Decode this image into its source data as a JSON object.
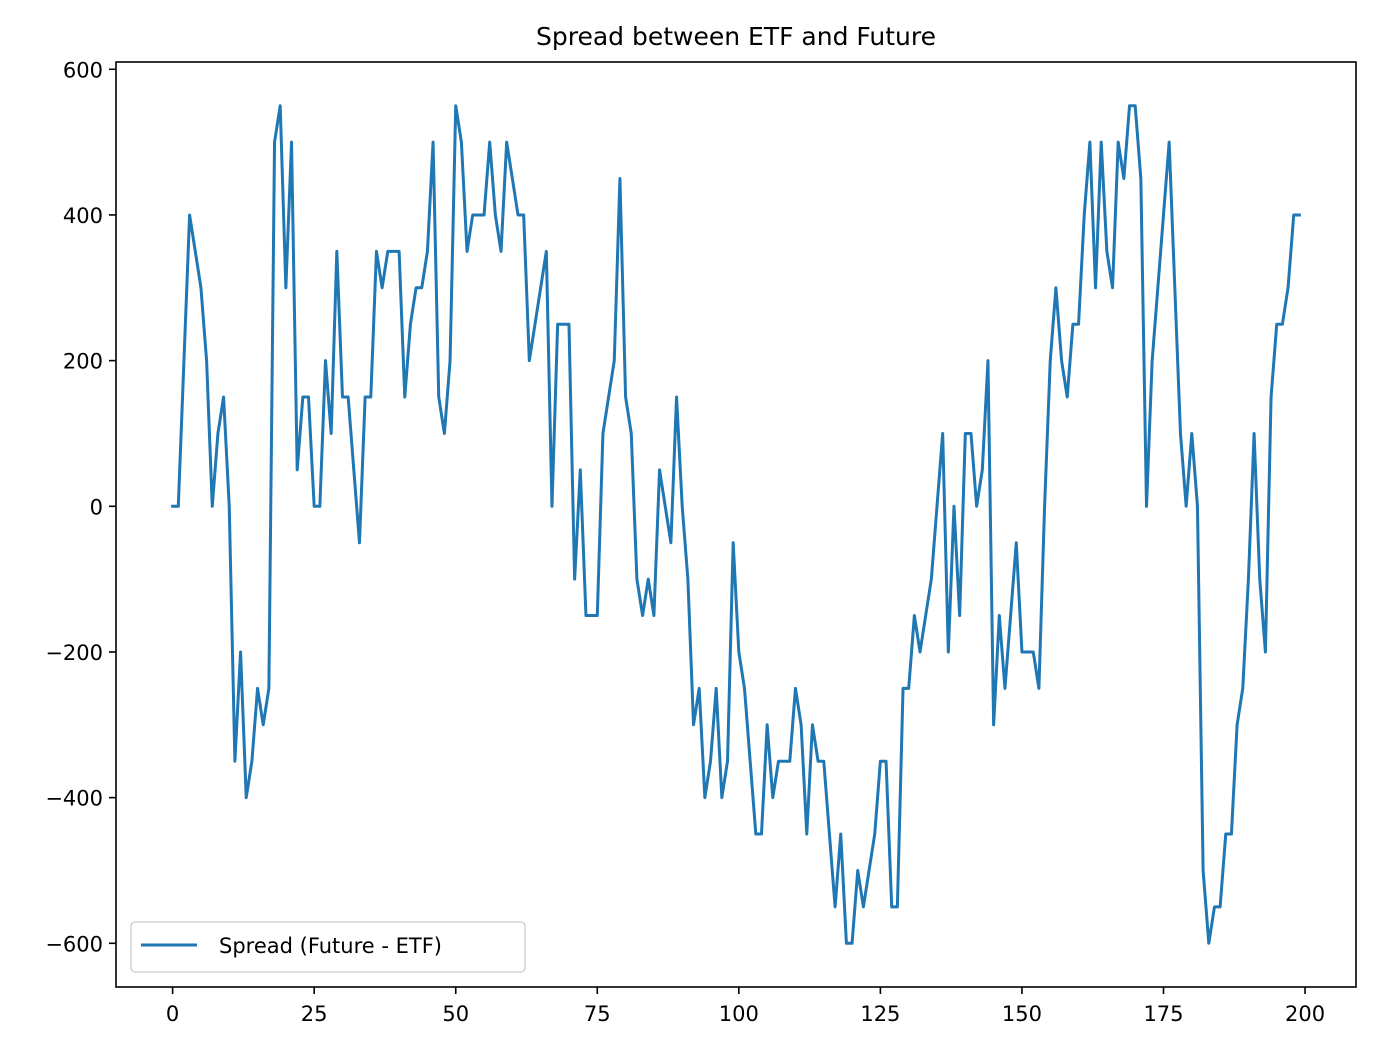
{
  "chart_data": {
    "type": "line",
    "title": "Spread between ETF and Future",
    "xlabel": "",
    "ylabel": "",
    "xlim": [
      -10,
      209
    ],
    "ylim": [
      -660,
      610
    ],
    "xticks": [
      0,
      25,
      50,
      75,
      100,
      125,
      150,
      175,
      200
    ],
    "xtick_labels": [
      "0",
      "25",
      "50",
      "75",
      "100",
      "125",
      "150",
      "175",
      "200"
    ],
    "yticks": [
      600,
      400,
      200,
      0,
      -200,
      -400,
      -600
    ],
    "ytick_labels": [
      "600",
      "400",
      "200",
      "0",
      "−200",
      "−400",
      "−600"
    ],
    "grid": false,
    "legend_position": "lower-left",
    "colors": {
      "series": "#1f77b4"
    },
    "series": [
      {
        "name": "Spread (Future - ETF)",
        "x": [
          0,
          1,
          2,
          3,
          4,
          5,
          6,
          7,
          8,
          9,
          10,
          11,
          12,
          13,
          14,
          15,
          16,
          17,
          18,
          19,
          20,
          21,
          22,
          23,
          24,
          25,
          26,
          27,
          28,
          29,
          30,
          31,
          32,
          33,
          34,
          35,
          36,
          37,
          38,
          39,
          40,
          41,
          42,
          43,
          44,
          45,
          46,
          47,
          48,
          49,
          50,
          51,
          52,
          53,
          54,
          55,
          56,
          57,
          58,
          59,
          60,
          61,
          62,
          63,
          64,
          65,
          66,
          67,
          68,
          69,
          70,
          71,
          72,
          73,
          74,
          75,
          76,
          77,
          78,
          79,
          80,
          81,
          82,
          83,
          84,
          85,
          86,
          87,
          88,
          89,
          90,
          91,
          92,
          93,
          94,
          95,
          96,
          97,
          98,
          99,
          100,
          101,
          102,
          103,
          104,
          105,
          106,
          107,
          108,
          109,
          110,
          111,
          112,
          113,
          114,
          115,
          116,
          117,
          118,
          119,
          120,
          121,
          122,
          123,
          124,
          125,
          126,
          127,
          128,
          129,
          130,
          131,
          132,
          133,
          134,
          135,
          136,
          137,
          138,
          139,
          140,
          141,
          142,
          143,
          144,
          145,
          146,
          147,
          148,
          149,
          150,
          151,
          152,
          153,
          154,
          155,
          156,
          157,
          158,
          159,
          160,
          161,
          162,
          163,
          164,
          165,
          166,
          167,
          168,
          169,
          170,
          171,
          172,
          173,
          174,
          175,
          176,
          177,
          178,
          179,
          180,
          181,
          182,
          183,
          184,
          185,
          186,
          187,
          188,
          189,
          190,
          191,
          192,
          193,
          194,
          195,
          196,
          197,
          198,
          199
        ],
        "y": [
          0,
          0,
          200,
          400,
          350,
          300,
          200,
          0,
          100,
          150,
          0,
          -350,
          -200,
          -400,
          -350,
          -250,
          -300,
          -250,
          500,
          550,
          300,
          500,
          50,
          150,
          150,
          0,
          0,
          200,
          100,
          350,
          150,
          150,
          50,
          -50,
          150,
          150,
          350,
          300,
          350,
          350,
          350,
          150,
          250,
          300,
          300,
          350,
          500,
          150,
          100,
          200,
          550,
          500,
          350,
          400,
          400,
          400,
          500,
          400,
          350,
          500,
          450,
          400,
          400,
          200,
          250,
          300,
          350,
          0,
          250,
          250,
          250,
          -100,
          50,
          -150,
          -150,
          -150,
          100,
          150,
          200,
          450,
          150,
          100,
          -100,
          -150,
          -100,
          -150,
          50,
          0,
          -50,
          150,
          0,
          -100,
          -300,
          -250,
          -400,
          -350,
          -250,
          -400,
          -350,
          -50,
          -200,
          -250,
          -350,
          -450,
          -450,
          -300,
          -400,
          -350,
          -350,
          -350,
          -250,
          -300,
          -450,
          -300,
          -350,
          -350,
          -450,
          -550,
          -450,
          -600,
          -600,
          -500,
          -550,
          -500,
          -450,
          -350,
          -350,
          -550,
          -550,
          -250,
          -250,
          -150,
          -200,
          -150,
          -100,
          0,
          100,
          -200,
          0,
          -150,
          100,
          100,
          0,
          50,
          200,
          -300,
          -150,
          -250,
          -150,
          -50,
          -200,
          -200,
          -200,
          -250,
          0,
          200,
          300,
          200,
          150,
          250,
          250,
          400,
          500,
          300,
          500,
          350,
          300,
          500,
          450,
          550,
          550,
          450,
          0,
          200,
          300,
          400,
          500,
          300,
          100,
          0,
          100,
          0,
          -500,
          -600,
          -550,
          -550,
          -450,
          -450,
          -300,
          -250,
          -100,
          100,
          -100,
          -200,
          150,
          250,
          250,
          300,
          400,
          400
        ]
      }
    ]
  }
}
